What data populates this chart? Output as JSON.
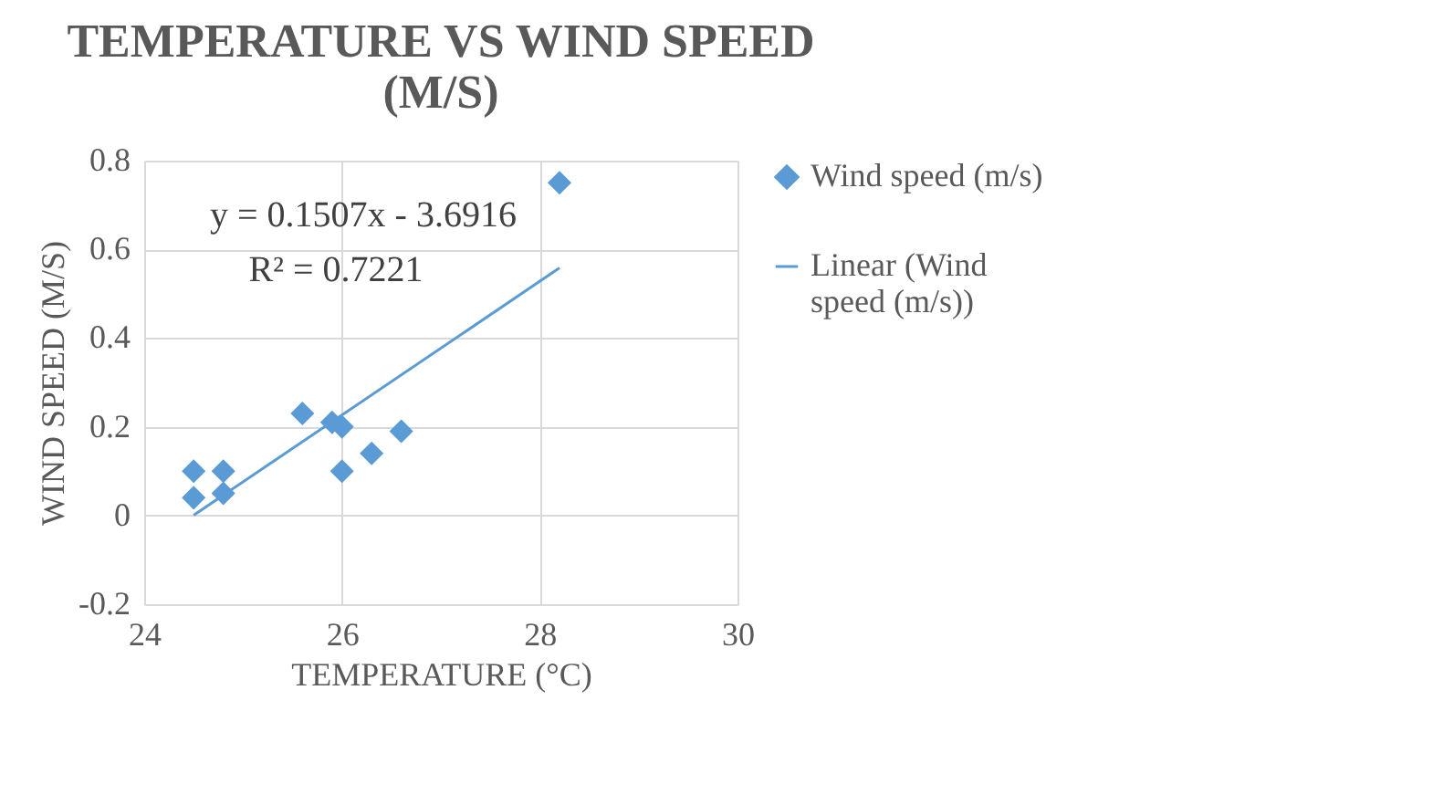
{
  "chart_data": {
    "type": "scatter",
    "title": "TEMPERATURE VS WIND SPEED (M/S)",
    "xlabel": "TEMPERATURE (°C)",
    "ylabel": "WIND SPEED (M/S)",
    "xlim": [
      24,
      30
    ],
    "xticks": [
      24,
      26,
      28,
      30
    ],
    "ylim": [
      -0.2,
      0.8
    ],
    "yticks": [
      -0.2,
      0,
      0.2,
      0.4,
      0.6,
      0.8
    ],
    "grid": true,
    "legend": "right",
    "series": [
      {
        "name": "Wind speed (m/s)",
        "color": "#5b9bd5",
        "marker": "diamond",
        "x": [
          24.5,
          24.5,
          24.8,
          24.8,
          25.6,
          25.9,
          26.0,
          26.0,
          26.3,
          26.6,
          28.2
        ],
        "values": [
          0.1,
          0.04,
          0.1,
          0.05,
          0.23,
          0.21,
          0.2,
          0.1,
          0.14,
          0.19,
          0.75
        ]
      },
      {
        "name": "Linear (Wind speed (m/s))",
        "type": "line",
        "color": "#5b9bd5",
        "marker": "none",
        "line_style": "solid",
        "x": [
          24.5,
          28.2
        ],
        "values": [
          0.0006,
          0.558
        ]
      }
    ],
    "annotations": [
      "y = 0.1507x - 3.6916",
      "R² = 0.7221"
    ]
  }
}
